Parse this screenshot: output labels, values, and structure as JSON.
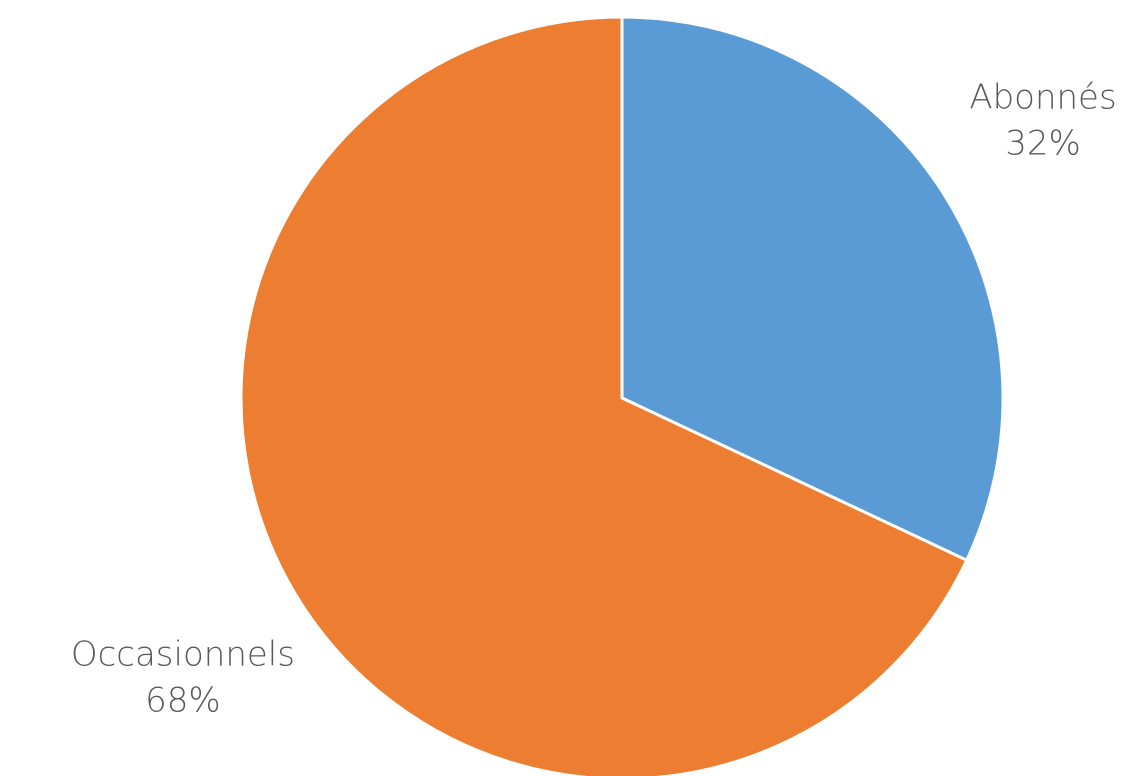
{
  "chart_data": {
    "type": "pie",
    "title": "",
    "start_angle_deg": 0,
    "direction": "clockwise",
    "slices": [
      {
        "label": "Abonnés",
        "value": 32,
        "value_label": "32%",
        "color": "#5B9BD5"
      },
      {
        "label": "Occasionnels",
        "value": 68,
        "value_label": "68%",
        "color": "#ED7D31"
      }
    ],
    "legend": "none",
    "slice_border_color": "#ffffff"
  }
}
